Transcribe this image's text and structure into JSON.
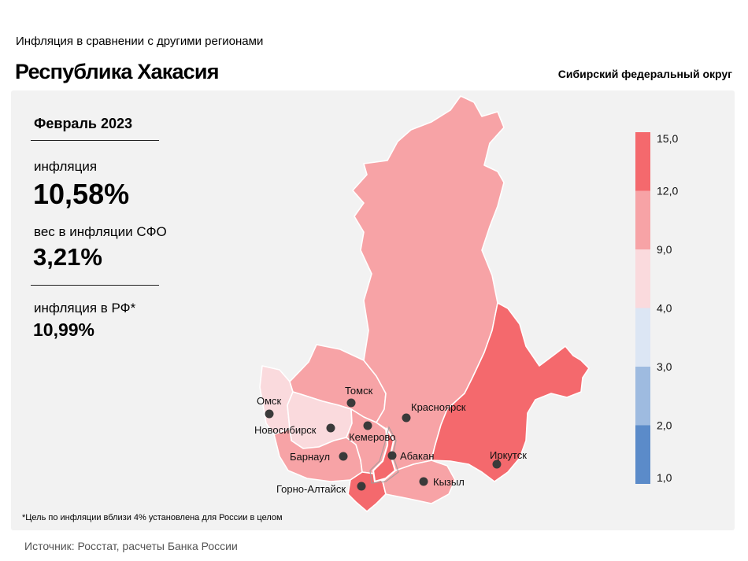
{
  "header": {
    "subtitle": "Инфляция в сравнении с другими регионами",
    "title": "Республика Хакасия",
    "district": "Сибирский федеральный округ"
  },
  "stats": {
    "period": "Февраль 2023",
    "inflation_label": "инфляция",
    "inflation_value": "10,58%",
    "weight_label": "вес в инфляции СФО",
    "weight_value": "3,21%",
    "rf_label": "инфляция в РФ*",
    "rf_value": "10,99%"
  },
  "footnote": "*Цель по инфляции вблизи 4% установлена для России в целом",
  "source": "Источник: Росстат, расчеты Банка России",
  "legend": {
    "ticks": [
      "15,0",
      "12,0",
      "9,0",
      "4,0",
      "3,0",
      "2,0",
      "1,0"
    ],
    "bands": [
      {
        "from": 12.0,
        "to": 15.0,
        "color": "#f4696d"
      },
      {
        "from": 9.0,
        "to": 12.0,
        "color": "#f7a3a6"
      },
      {
        "from": 4.0,
        "to": 9.0,
        "color": "#fadadd"
      },
      {
        "from": 3.0,
        "to": 4.0,
        "color": "#dce6f4"
      },
      {
        "from": 2.0,
        "to": 3.0,
        "color": "#9ebbe0"
      },
      {
        "from": 1.0,
        "to": 2.0,
        "color": "#5b8bc9"
      }
    ]
  },
  "cities": {
    "omsk": "Омск",
    "novosibirsk": "Новосибирск",
    "tomsk": "Томск",
    "kemerovo": "Кемерово",
    "barnaul": "Барнаул",
    "gorno_altaysk": "Горно-Алтайск",
    "abakan": "Абакан",
    "krasnoyarsk": "Красноярск",
    "kyzyl": "Кызыл",
    "irkutsk": "Иркутск"
  },
  "colors": {
    "highlight": "#f4696d",
    "mid": "#f7a3a6",
    "light": "#fadadd",
    "hakasia_outline": "#ffffff"
  }
}
